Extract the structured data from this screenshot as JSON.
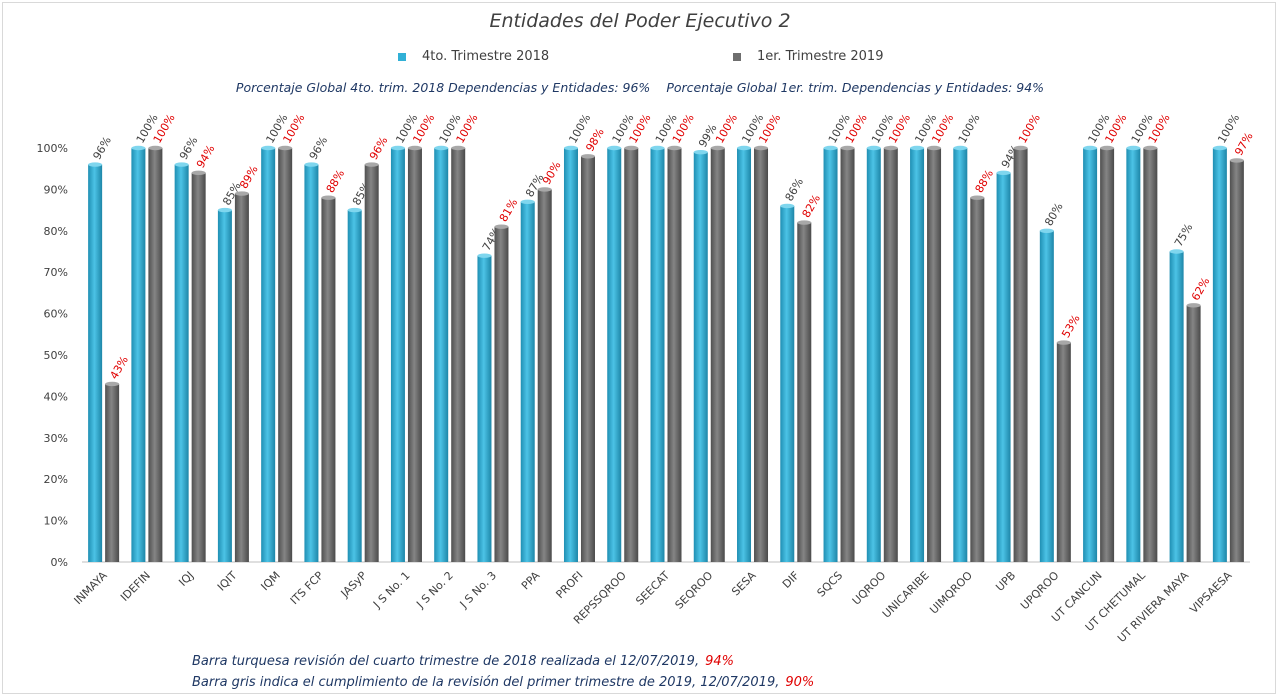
{
  "chart_data": {
    "type": "bar",
    "title": "Entidades del Poder Ejecutivo 2",
    "categories": [
      "INMAYA",
      "IDEFIN",
      "IQJ",
      "IQIT",
      "IQM",
      "ITS FCP",
      "JASyP",
      "J S No. 1",
      "J S No. 2",
      "J S No. 3",
      "PPA",
      "PROFI",
      "REPSSQROO",
      "SEECAT",
      "SEQROO",
      "SESA",
      "DIF",
      "SQCS",
      "UQROO",
      "UNICARIBE",
      "UIMQROO",
      "UPB",
      "UPQROO",
      "UT CANCUN",
      "UT CHETUMAL",
      "UT RIVIERA MAYA",
      "VIPSAESA"
    ],
    "series": [
      {
        "name": "4to. Trimestre 2018",
        "color": "#31b0d6",
        "values": [
          96,
          100,
          96,
          85,
          100,
          96,
          85,
          100,
          100,
          74,
          87,
          100,
          100,
          100,
          99,
          100,
          86,
          100,
          100,
          100,
          100,
          94,
          80,
          100,
          100,
          75,
          100
        ]
      },
      {
        "name": "1er. Trimestre 2019",
        "color": "#6e6e6e",
        "values": [
          43,
          100,
          94,
          89,
          100,
          88,
          96,
          100,
          100,
          81,
          90,
          98,
          100,
          100,
          100,
          100,
          82,
          100,
          100,
          100,
          88,
          100,
          53,
          100,
          100,
          62,
          97
        ]
      }
    ],
    "ylim": [
      0,
      100
    ],
    "yticks": [
      "0%",
      "10%",
      "20%",
      "30%",
      "40%",
      "50%",
      "60%",
      "70%",
      "80%",
      "90%",
      "100%"
    ],
    "grid": false,
    "legend_position": "top"
  },
  "texts": {
    "global_2018": "Porcentaje Global 4to. trim. 2018 Dependencias y Entidades: 96%",
    "global_2019": "Porcentaje Global  1er. trim. Dependencias y Entidades: 94%",
    "note1_text": "Barra turquesa  revisión del cuarto trimestre  de 2018  realizada el   12/07/2019,",
    "note1_value": "94%",
    "note2_text": "Barra gris indica el cumplimiento  de la revisión del primer trimestre de 2019,  12/07/2019,",
    "note2_value": "90%"
  }
}
